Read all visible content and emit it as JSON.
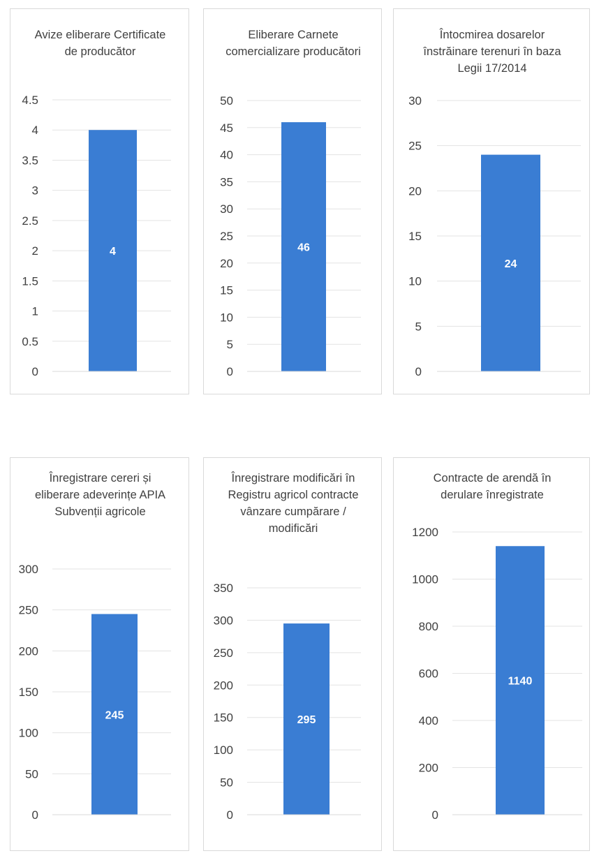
{
  "chart_data": [
    {
      "type": "bar",
      "title": "Avize eliberare Certificate de producător",
      "categories": [
        ""
      ],
      "values": [
        4
      ],
      "data_labels": [
        "4"
      ],
      "ylim": [
        0,
        4.5
      ],
      "yticks": [
        "0",
        "0.5",
        "1",
        "1.5",
        "2",
        "2.5",
        "3",
        "3.5",
        "4",
        "4.5"
      ],
      "grid": true,
      "legend": "none",
      "color": "#3a7dd3"
    },
    {
      "type": "bar",
      "title": "Eliberare Carnete comercializare producători",
      "categories": [
        ""
      ],
      "values": [
        46
      ],
      "data_labels": [
        "46"
      ],
      "ylim": [
        0,
        50
      ],
      "yticks": [
        "0",
        "5",
        "10",
        "15",
        "20",
        "25",
        "30",
        "35",
        "40",
        "45",
        "50"
      ],
      "grid": true,
      "legend": "none",
      "color": "#3a7dd3"
    },
    {
      "type": "bar",
      "title": "Întocmirea dosarelor înstrăinare terenuri în baza Legii 17/2014",
      "categories": [
        ""
      ],
      "values": [
        24
      ],
      "data_labels": [
        "24"
      ],
      "ylim": [
        0,
        30
      ],
      "yticks": [
        "0",
        "5",
        "10",
        "15",
        "20",
        "25",
        "30"
      ],
      "grid": true,
      "legend": "none",
      "color": "#3a7dd3"
    },
    {
      "type": "bar",
      "title": "Înregistrare cereri și eliberare adeverințe APIA Subvenții agricole",
      "categories": [
        ""
      ],
      "values": [
        245
      ],
      "data_labels": [
        "245"
      ],
      "ylim": [
        0,
        300
      ],
      "yticks": [
        "0",
        "50",
        "100",
        "150",
        "200",
        "250",
        "300"
      ],
      "grid": true,
      "legend": "none",
      "color": "#3a7dd3"
    },
    {
      "type": "bar",
      "title": "Înregistrare modificări în Registru agricol contracte vânzare cumpărare / modificări",
      "categories": [
        ""
      ],
      "values": [
        295
      ],
      "data_labels": [
        "295"
      ],
      "ylim": [
        0,
        350
      ],
      "yticks": [
        "0",
        "50",
        "100",
        "150",
        "200",
        "250",
        "300",
        "350"
      ],
      "grid": true,
      "legend": "none",
      "color": "#3a7dd3"
    },
    {
      "type": "bar",
      "title": "Contracte de arendă în derulare înregistrate",
      "categories": [
        ""
      ],
      "values": [
        1140
      ],
      "data_labels": [
        "1140"
      ],
      "ylim": [
        0,
        1200
      ],
      "yticks": [
        "0",
        "200",
        "400",
        "600",
        "800",
        "1000",
        "1200"
      ],
      "grid": true,
      "legend": "none",
      "color": "#3a7dd3"
    }
  ]
}
